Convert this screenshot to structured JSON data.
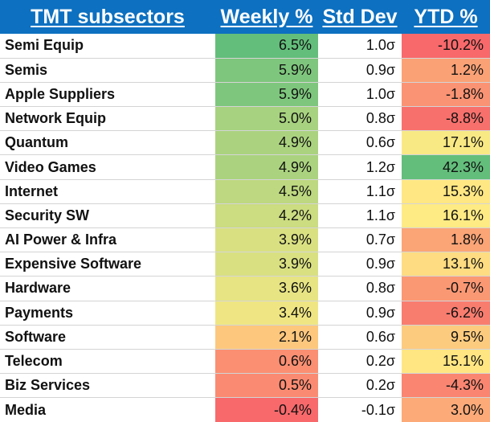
{
  "chart_data": {
    "type": "table",
    "columns": [
      "TMT subsectors",
      "Weekly %",
      "Std Dev",
      "YTD %"
    ],
    "rows": [
      {
        "name": "Semi Equip",
        "weekly": "6.5%",
        "std": "1.0σ",
        "ytd": "-10.2%"
      },
      {
        "name": "Semis",
        "weekly": "5.9%",
        "std": "0.9σ",
        "ytd": "1.2%"
      },
      {
        "name": "Apple Suppliers",
        "weekly": "5.9%",
        "std": "1.0σ",
        "ytd": "-1.8%"
      },
      {
        "name": "Network Equip",
        "weekly": "5.0%",
        "std": "0.8σ",
        "ytd": "-8.8%"
      },
      {
        "name": "Quantum",
        "weekly": "4.9%",
        "std": "0.6σ",
        "ytd": "17.1%"
      },
      {
        "name": "Video Games",
        "weekly": "4.9%",
        "std": "1.2σ",
        "ytd": "42.3%"
      },
      {
        "name": "Internet",
        "weekly": "4.5%",
        "std": "1.1σ",
        "ytd": "15.3%"
      },
      {
        "name": "Security SW",
        "weekly": "4.2%",
        "std": "1.1σ",
        "ytd": "16.1%"
      },
      {
        "name": "AI Power & Infra",
        "weekly": "3.9%",
        "std": "0.7σ",
        "ytd": "1.8%"
      },
      {
        "name": "Expensive Software",
        "weekly": "3.9%",
        "std": "0.9σ",
        "ytd": "13.1%"
      },
      {
        "name": "Hardware",
        "weekly": "3.6%",
        "std": "0.8σ",
        "ytd": "-0.7%"
      },
      {
        "name": "Payments",
        "weekly": "3.4%",
        "std": "0.9σ",
        "ytd": "-6.2%"
      },
      {
        "name": "Software",
        "weekly": "2.1%",
        "std": "0.6σ",
        "ytd": "9.5%"
      },
      {
        "name": "Telecom",
        "weekly": "0.6%",
        "std": "0.2σ",
        "ytd": "15.1%"
      },
      {
        "name": "Biz Services",
        "weekly": "0.5%",
        "std": "0.2σ",
        "ytd": "-4.3%"
      },
      {
        "name": "Media",
        "weekly": "-0.4%",
        "std": "-0.1σ",
        "ytd": "3.0%"
      }
    ],
    "colors": {
      "header_bg": "#0d70c0",
      "header_text": "#ffffff",
      "scale_low": "#f8696b",
      "scale_mid": "#ffeb84",
      "scale_high": "#63be7b"
    }
  }
}
